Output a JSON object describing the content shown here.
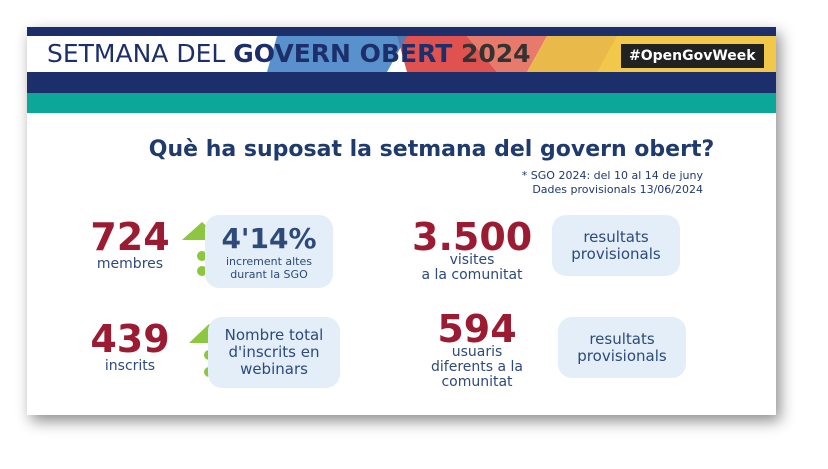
{
  "header": {
    "title_parts": [
      "SETMANA DEL ",
      "GOVERN OBERT ",
      "2024"
    ],
    "hashtag": "#OpenGovWeek"
  },
  "heading": "Què ha suposat la setmana del govern obert?",
  "notes": [
    "* SGO 2024: del 10 al 14 de juny",
    "Dades provisionals  13/06/2024"
  ],
  "stats": [
    {
      "number": "724",
      "label": [
        "membres"
      ],
      "box": [
        "4'14%",
        "increment altes",
        "durant la SGO"
      ]
    },
    {
      "number": "3.500",
      "label": [
        "visites",
        "a la comunitat"
      ],
      "box": [
        "resultats",
        "provisionals"
      ]
    },
    {
      "number": "439",
      "label": [
        "inscrits"
      ],
      "box": [
        "Nombre total",
        "d'inscrits en",
        "webinars"
      ]
    },
    {
      "number": "594",
      "label": [
        "usuaris",
        "diferents a la",
        "comunitat"
      ],
      "box": [
        "resultats",
        "provisionals"
      ]
    }
  ]
}
